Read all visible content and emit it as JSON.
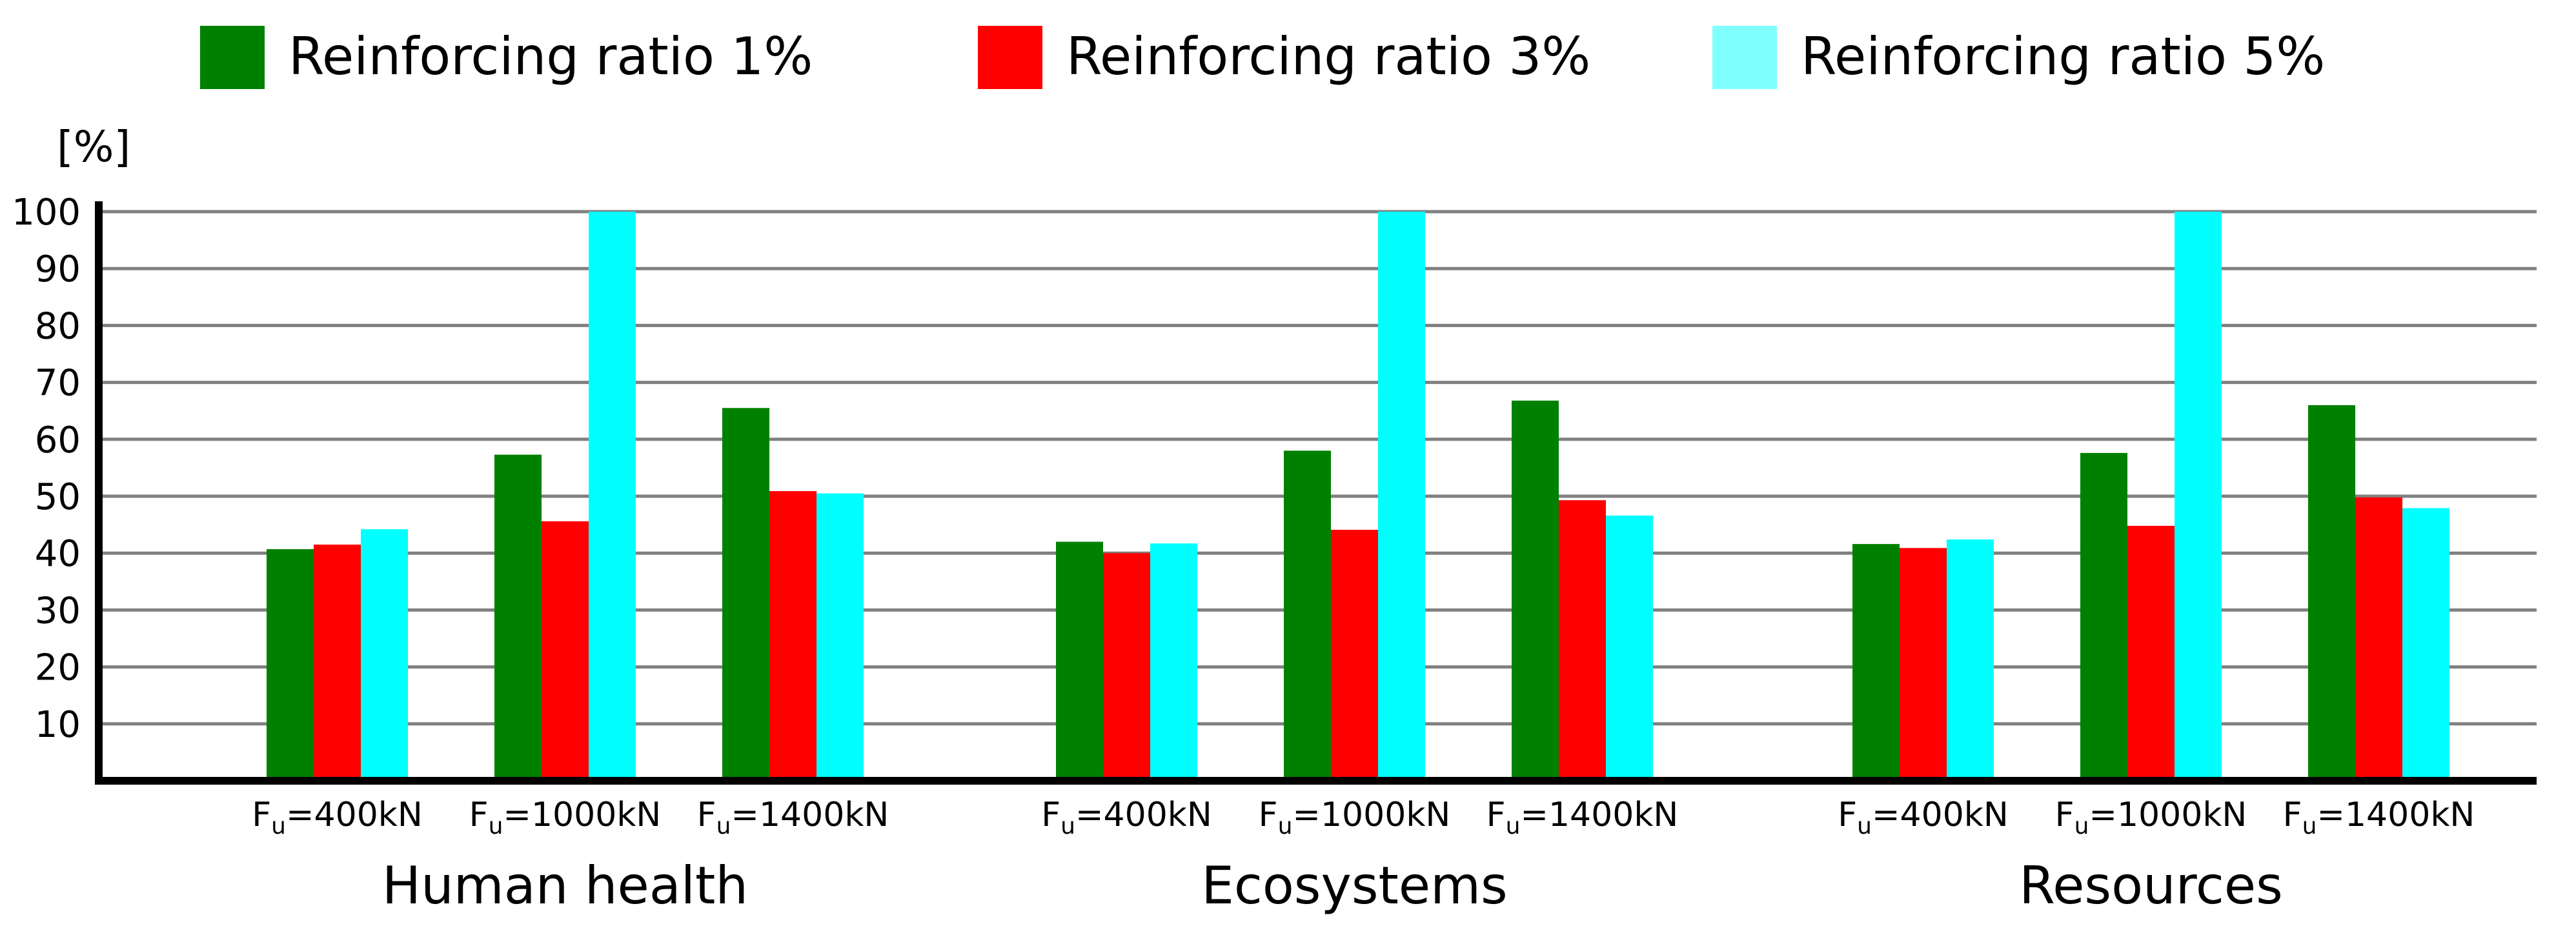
{
  "chart_data": {
    "type": "bar",
    "title": "",
    "xlabel": "",
    "ylabel": "[%]",
    "ylim": [
      0,
      100
    ],
    "yticks": [
      10,
      20,
      30,
      40,
      50,
      60,
      70,
      80,
      90,
      100
    ],
    "grid": true,
    "legend_position": "top",
    "groups": [
      "Human health",
      "Ecosystems",
      "Resources"
    ],
    "subcategories": [
      {
        "base": "F",
        "sub": "u",
        "rest": "=400kN"
      },
      {
        "base": "F",
        "sub": "u",
        "rest": "=1000kN"
      },
      {
        "base": "F",
        "sub": "u",
        "rest": "=1400kN"
      }
    ],
    "series": [
      {
        "name": "Reinforcing ratio 1%",
        "color": "#008000",
        "legend_color": "#008000",
        "values": [
          [
            40.7,
            57.3,
            65.5
          ],
          [
            42.0,
            58.0,
            66.8
          ],
          [
            41.6,
            57.6,
            66.0
          ]
        ]
      },
      {
        "name": "Reinforcing ratio 3%",
        "color": "#ff0000",
        "legend_color": "#ff0000",
        "values": [
          [
            41.5,
            45.6,
            50.9
          ],
          [
            40.0,
            44.1,
            49.3
          ],
          [
            40.9,
            44.8,
            49.8
          ]
        ]
      },
      {
        "name": "Reinforcing ratio 5%",
        "color": "#00ffff",
        "legend_color": "#80ffff",
        "values": [
          [
            44.2,
            100.0,
            50.5
          ],
          [
            41.7,
            100.0,
            46.6
          ],
          [
            42.4,
            100.0,
            47.9
          ]
        ]
      }
    ]
  }
}
